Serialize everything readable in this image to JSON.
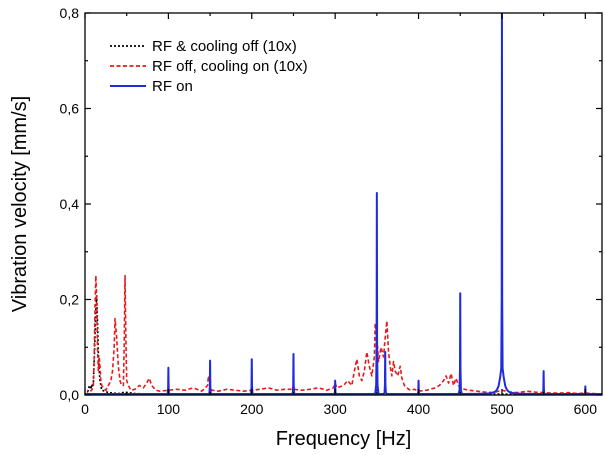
{
  "chart_data": {
    "type": "line",
    "title": "",
    "xlabel": "Frequency [Hz]",
    "ylabel": "Vibration velocity [mm/s]",
    "xlim": [
      0,
      620
    ],
    "ylim": [
      0,
      0.8
    ],
    "x_ticks": [
      0,
      100,
      200,
      300,
      400,
      500,
      600
    ],
    "x_tick_labels": [
      "0",
      "100",
      "200",
      "300",
      "400",
      "500",
      "600"
    ],
    "y_ticks": [
      0,
      0.2,
      0.4,
      0.6,
      0.8
    ],
    "y_tick_labels": [
      "0,0",
      "0,2",
      "0,4",
      "0,6",
      "0,8"
    ],
    "grid": false,
    "legend_position": "top-left",
    "series": [
      {
        "name": "RF & cooling off (10x)",
        "color": "#000000",
        "style": "dotted",
        "x": [
          0,
          2,
          4,
          5,
          6,
          7,
          8,
          9,
          10,
          11,
          12,
          13,
          14,
          15,
          16,
          17,
          18,
          20,
          24,
          28,
          34,
          40,
          48,
          60,
          80,
          100,
          150,
          200,
          250,
          300,
          340,
          348,
          350,
          352,
          360,
          400,
          450,
          500,
          550,
          600,
          620
        ],
        "y": [
          0.0,
          0.004,
          0.01,
          0.018,
          0.02,
          0.012,
          0.022,
          0.016,
          0.025,
          0.07,
          0.12,
          0.18,
          0.21,
          0.15,
          0.09,
          0.05,
          0.03,
          0.01,
          0.008,
          0.005,
          0.004,
          0.003,
          0.006,
          0.003,
          0.002,
          0.002,
          0.002,
          0.002,
          0.002,
          0.002,
          0.002,
          0.003,
          0.01,
          0.003,
          0.002,
          0.002,
          0.002,
          0.002,
          0.002,
          0.002,
          0.001
        ]
      },
      {
        "name": "RF off, cooling on (10x)",
        "color": "#e8181b",
        "style": "dashed",
        "x": [
          0,
          4,
          8,
          10,
          11,
          12,
          13,
          14,
          15,
          16,
          17,
          18,
          19,
          20,
          22,
          25,
          28,
          31,
          33,
          35,
          36,
          38,
          40,
          42,
          44,
          46,
          47,
          48,
          49,
          50,
          52,
          55,
          60,
          65,
          70,
          74,
          77,
          80,
          85,
          90,
          100,
          110,
          120,
          130,
          140,
          147,
          148,
          150,
          152,
          160,
          170,
          180,
          190,
          200,
          210,
          220,
          230,
          240,
          250,
          260,
          270,
          280,
          290,
          298,
          300,
          302,
          310,
          315,
          320,
          323,
          326,
          329,
          332,
          335,
          338,
          341,
          344,
          347,
          348,
          350,
          352,
          355,
          358,
          360,
          362,
          364,
          366,
          368,
          370,
          372,
          375,
          378,
          380,
          383,
          386,
          390,
          395,
          400,
          410,
          420,
          425,
          430,
          433,
          436,
          439,
          442,
          445,
          448,
          450,
          455,
          460,
          470,
          480,
          490,
          500,
          510,
          520,
          530,
          540,
          550,
          560,
          570,
          580,
          590,
          600,
          610,
          620
        ],
        "y": [
          0.0,
          0.005,
          0.01,
          0.02,
          0.08,
          0.18,
          0.25,
          0.2,
          0.1,
          0.05,
          0.08,
          0.06,
          0.03,
          0.02,
          0.015,
          0.01,
          0.02,
          0.03,
          0.05,
          0.1,
          0.16,
          0.12,
          0.06,
          0.03,
          0.02,
          0.02,
          0.1,
          0.25,
          0.12,
          0.03,
          0.02,
          0.01,
          0.012,
          0.02,
          0.015,
          0.025,
          0.035,
          0.02,
          0.01,
          0.008,
          0.01,
          0.012,
          0.01,
          0.015,
          0.008,
          0.02,
          0.04,
          0.02,
          0.01,
          0.008,
          0.012,
          0.01,
          0.008,
          0.01,
          0.012,
          0.015,
          0.01,
          0.012,
          0.012,
          0.01,
          0.012,
          0.015,
          0.01,
          0.015,
          0.025,
          0.015,
          0.02,
          0.03,
          0.02,
          0.05,
          0.075,
          0.04,
          0.03,
          0.05,
          0.09,
          0.06,
          0.04,
          0.08,
          0.15,
          0.12,
          0.07,
          0.1,
          0.08,
          0.12,
          0.155,
          0.09,
          0.06,
          0.04,
          0.07,
          0.05,
          0.04,
          0.06,
          0.035,
          0.02,
          0.015,
          0.01,
          0.012,
          0.008,
          0.01,
          0.015,
          0.02,
          0.03,
          0.04,
          0.025,
          0.045,
          0.02,
          0.035,
          0.02,
          0.015,
          0.012,
          0.01,
          0.008,
          0.006,
          0.005,
          0.01,
          0.006,
          0.005,
          0.008,
          0.006,
          0.005,
          0.004,
          0.004,
          0.005,
          0.003,
          0.004,
          0.003,
          0.002
        ]
      },
      {
        "name": "RF on",
        "color": "#1f2bdc",
        "style": "solid",
        "peaks": [
          {
            "x": 100,
            "y": 0.057
          },
          {
            "x": 150,
            "y": 0.072
          },
          {
            "x": 200,
            "y": 0.075
          },
          {
            "x": 250,
            "y": 0.086
          },
          {
            "x": 300,
            "y": 0.03
          },
          {
            "x": 350,
            "y": 0.423
          },
          {
            "x": 360,
            "y": 0.09
          },
          {
            "x": 400,
            "y": 0.03
          },
          {
            "x": 450,
            "y": 0.213
          },
          {
            "x": 500,
            "y": 0.8
          },
          {
            "x": 550,
            "y": 0.05
          },
          {
            "x": 600,
            "y": 0.018
          }
        ],
        "broad_peak": {
          "x": 500,
          "baseline_rise": 0.06
        }
      }
    ]
  }
}
